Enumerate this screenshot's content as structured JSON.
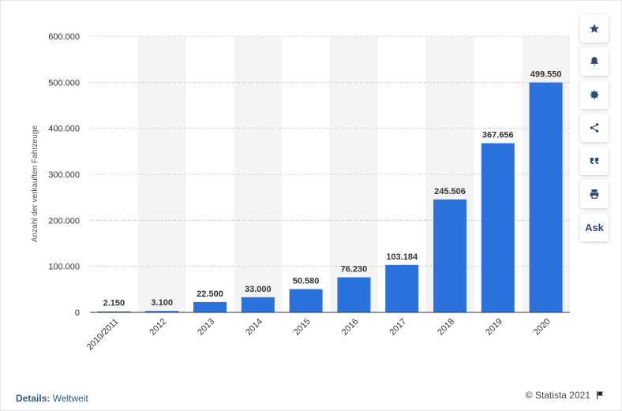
{
  "chart_data": {
    "type": "bar",
    "categories": [
      "2010/2011",
      "2012",
      "2013",
      "2014",
      "2015",
      "2016",
      "2017",
      "2018",
      "2019",
      "2020"
    ],
    "values": [
      2150,
      3100,
      22500,
      33000,
      50580,
      76230,
      103184,
      245506,
      367656,
      499550
    ],
    "value_labels": [
      "2.150",
      "3.100",
      "22.500",
      "33.000",
      "50.580",
      "76.230",
      "103.184",
      "245.506",
      "367.656",
      "499.550"
    ],
    "ylabel": "Anzahl der verkauften Fahrzeuge",
    "ylim": [
      0,
      600000
    ],
    "yticks": [
      0,
      100000,
      200000,
      300000,
      400000,
      500000,
      600000
    ],
    "ytick_labels": [
      "0",
      "100.000",
      "200.000",
      "300.000",
      "400.000",
      "500.000",
      "600.000"
    ],
    "bar_color": "#2a72dd",
    "band_color": "#f4f4f4",
    "grid": true
  },
  "sidebar": {
    "ask_label": "Ask",
    "icons": [
      "star-icon",
      "bell-icon",
      "gear-icon",
      "share-icon",
      "quote-icon",
      "print-icon"
    ]
  },
  "footer": {
    "details_key": "Details:",
    "details_value": "Weltweit",
    "copyright": "© Statista 2021"
  }
}
